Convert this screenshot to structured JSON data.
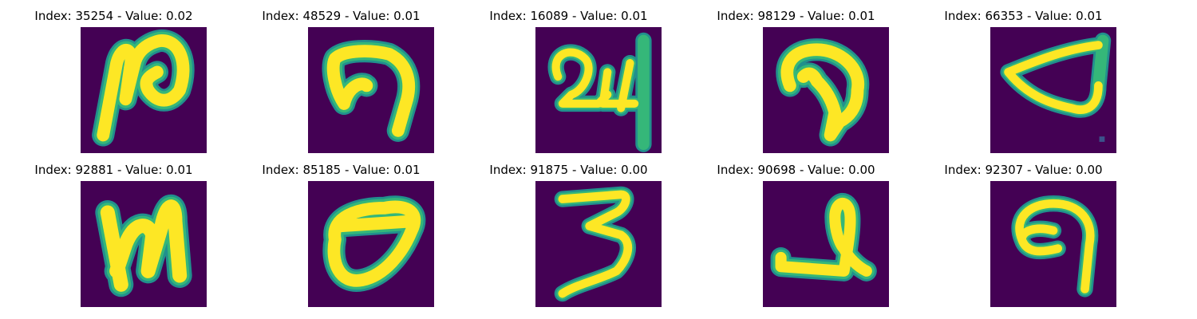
{
  "colors": {
    "background": "#440154",
    "stroke_core": "#fde725",
    "stroke_edge": "#35b779",
    "stroke_halo": "#21908d"
  },
  "panels": [
    {
      "index": "35254",
      "value": "0.02",
      "title": "Index: 35254 - Value: 0.02",
      "glyph": "handwritten-stroke-n-curl"
    },
    {
      "index": "48529",
      "value": "0.01",
      "title": "Index: 48529 - Value: 0.01",
      "glyph": "handwritten-stroke-arch"
    },
    {
      "index": "16089",
      "value": "0.01",
      "title": "Index: 16089 - Value: 0.01",
      "glyph": "handwritten-stroke-24"
    },
    {
      "index": "98129",
      "value": "0.01",
      "title": "Index: 98129 - Value: 0.01",
      "glyph": "handwritten-stroke-hook"
    },
    {
      "index": "66353",
      "value": "0.01",
      "title": "Index: 66353 - Value: 0.01",
      "glyph": "handwritten-stroke-wedge"
    },
    {
      "index": "92881",
      "value": "0.01",
      "title": "Index: 92881 - Value: 0.01",
      "glyph": "handwritten-stroke-n"
    },
    {
      "index": "85185",
      "value": "0.01",
      "title": "Index: 85185 - Value: 0.01",
      "glyph": "handwritten-stroke-loop"
    },
    {
      "index": "91875",
      "value": "0.00",
      "title": "Index: 91875 - Value: 0.00",
      "glyph": "handwritten-stroke-3"
    },
    {
      "index": "90698",
      "value": "0.00",
      "title": "Index: 90698 - Value: 0.00",
      "glyph": "handwritten-stroke-curl-base"
    },
    {
      "index": "92307",
      "value": "0.00",
      "title": "Index: 92307 - Value: 0.00",
      "glyph": "handwritten-stroke-9"
    }
  ]
}
